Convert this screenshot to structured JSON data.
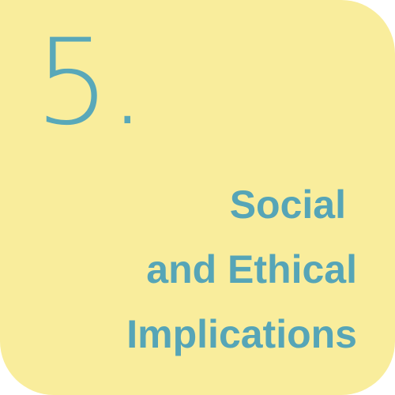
{
  "card": {
    "number": "5.",
    "title_lines": [
      "Social",
      "and Ethical",
      "Implications"
    ]
  },
  "colors": {
    "background": "#f9ed9c",
    "accent": "#59a8b9"
  }
}
